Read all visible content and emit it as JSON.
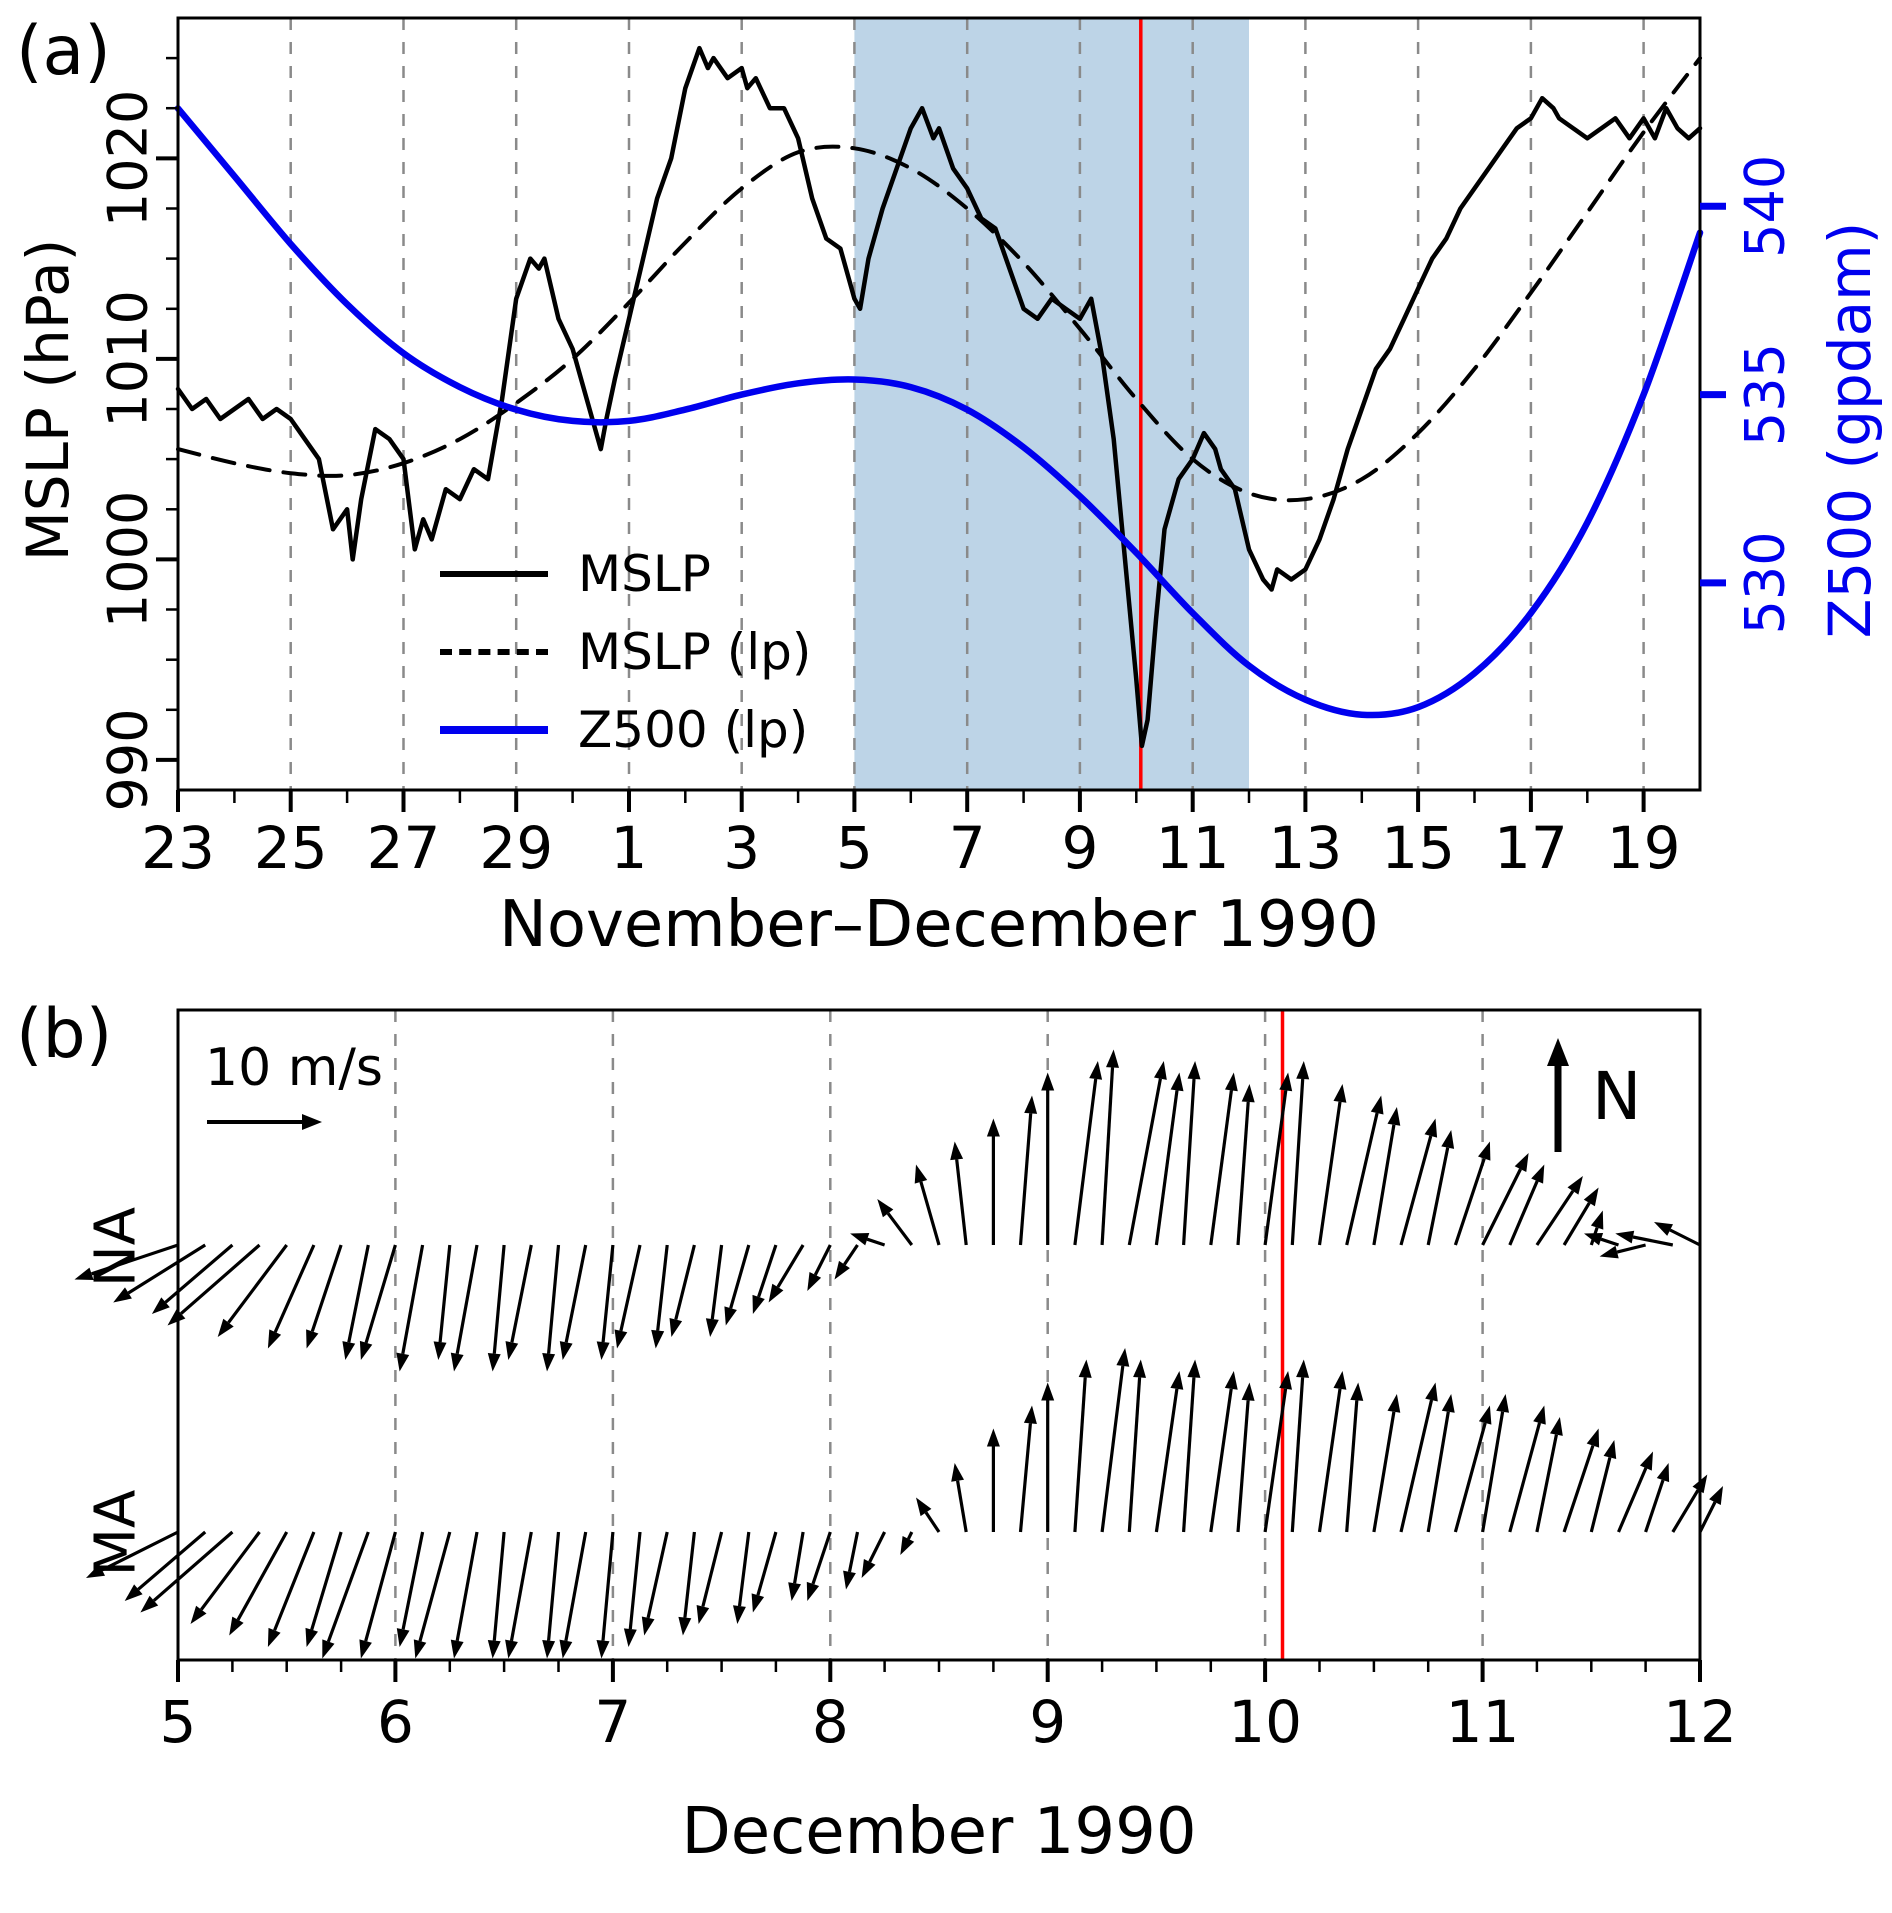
{
  "panels": {
    "a": {
      "tag": "(a)"
    },
    "b": {
      "tag": "(b)"
    }
  },
  "chart_data": [
    {
      "type": "line",
      "panel": "a",
      "xlabel": "November–December 1990",
      "ylabel_left": "MSLP (hPa)",
      "ylabel_right": "Z500 (gpdam)",
      "x_domain": [
        0,
        27
      ],
      "x_major_ticks": [
        0,
        2,
        4,
        6,
        8,
        10,
        12,
        14,
        16,
        18,
        20,
        22,
        24,
        26
      ],
      "x_major_labels": [
        "23",
        "25",
        "27",
        "29",
        "1",
        "3",
        "5",
        "7",
        "9",
        "11",
        "13",
        "15",
        "17",
        "19"
      ],
      "x_gridlines": [
        2,
        4,
        6,
        8,
        10,
        12,
        14,
        16,
        18,
        20,
        22,
        24,
        26
      ],
      "ylim_left": [
        988.5,
        1027.0
      ],
      "yticks_left": [
        990,
        1000,
        1010,
        1020
      ],
      "yticklabels_left": [
        "990",
        "1000",
        "1010",
        "1020"
      ],
      "ylim_right": [
        524.5,
        545.0
      ],
      "yticks_right": [
        530,
        535,
        540
      ],
      "yticklabels_right": [
        "530",
        "535",
        "540"
      ],
      "shaded_region": [
        12.0,
        19.0
      ],
      "shading_color": "#bdd4e7",
      "event_line_x": 17.08,
      "event_line_color": "#ff0000",
      "legend": [
        "MSLP",
        "MSLP (lp)",
        "Z500 (lp)"
      ],
      "series": [
        {
          "name": "MSLP",
          "style": "solid",
          "color": "#000000",
          "axis": "left",
          "smooth": false,
          "x": [
            0,
            0.25,
            0.5,
            0.75,
            1,
            1.25,
            1.5,
            1.75,
            2,
            2.25,
            2.5,
            2.75,
            3,
            3.1,
            3.25,
            3.5,
            3.75,
            4,
            4.2,
            4.35,
            4.5,
            4.75,
            5,
            5.25,
            5.5,
            5.75,
            6,
            6.25,
            6.4,
            6.5,
            6.75,
            7,
            7.25,
            7.5,
            7.6,
            7.75,
            8,
            8.25,
            8.5,
            8.75,
            9,
            9.25,
            9.4,
            9.5,
            9.75,
            10,
            10.1,
            10.25,
            10.5,
            10.75,
            11,
            11.25,
            11.5,
            11.75,
            12,
            12.1,
            12.25,
            12.5,
            12.75,
            13,
            13.2,
            13.4,
            13.5,
            13.75,
            14,
            14.25,
            14.5,
            14.75,
            15,
            15.25,
            15.5,
            15.75,
            16,
            16.2,
            16.4,
            16.6,
            16.8,
            17,
            17.1,
            17.2,
            17.35,
            17.5,
            17.75,
            18,
            18.2,
            18.4,
            18.5,
            18.75,
            19,
            19.25,
            19.4,
            19.5,
            19.75,
            20,
            20.25,
            20.5,
            20.75,
            21,
            21.25,
            21.5,
            21.75,
            22,
            22.25,
            22.5,
            22.75,
            23,
            23.25,
            23.5,
            23.75,
            24,
            24.2,
            24.4,
            24.5,
            24.75,
            25,
            25.25,
            25.5,
            25.75,
            26,
            26.2,
            26.4,
            26.6,
            26.8,
            27
          ],
          "y": [
            1008.5,
            1007.5,
            1008,
            1007,
            1007.5,
            1008,
            1007,
            1007.5,
            1007,
            1006,
            1005,
            1001.5,
            1002.5,
            1000,
            1003,
            1006.5,
            1006,
            1005,
            1000.5,
            1002,
            1001,
            1003.5,
            1003,
            1004.5,
            1004,
            1008,
            1013,
            1015,
            1014.5,
            1015,
            1012,
            1010.5,
            1008,
            1005.5,
            1007,
            1009,
            1012,
            1015,
            1018,
            1020,
            1023.5,
            1025.5,
            1024.5,
            1025,
            1024,
            1024.5,
            1023.5,
            1024,
            1022.5,
            1022.5,
            1021,
            1018,
            1016,
            1015.5,
            1013,
            1012.5,
            1015,
            1017.5,
            1019.5,
            1021.5,
            1022.5,
            1021,
            1021.5,
            1019.5,
            1018.5,
            1017,
            1016.5,
            1014.5,
            1012.5,
            1012,
            1013,
            1012.5,
            1012,
            1013,
            1010,
            1006,
            1000,
            994,
            990.7,
            992,
            997,
            1001.5,
            1004,
            1005,
            1006.3,
            1005.5,
            1004.5,
            1003.5,
            1000.5,
            999,
            998.5,
            999.5,
            999,
            999.5,
            1001,
            1003,
            1005.5,
            1007.5,
            1009.5,
            1010.5,
            1012,
            1013.5,
            1015,
            1016,
            1017.5,
            1018.5,
            1019.5,
            1020.5,
            1021.5,
            1022,
            1023,
            1022.5,
            1022,
            1021.5,
            1021,
            1021.5,
            1022,
            1021,
            1022,
            1021,
            1022.5,
            1021.5,
            1021,
            1021.5
          ]
        },
        {
          "name": "MSLP (lp)",
          "style": "dashed",
          "color": "#000000",
          "axis": "left",
          "smooth": true,
          "x": [
            0,
            1,
            2,
            3,
            4,
            5,
            6,
            7,
            8,
            9,
            10,
            11,
            12,
            13,
            14,
            15,
            16,
            17,
            18,
            19,
            20,
            21,
            22,
            23,
            24,
            25,
            26,
            27
          ],
          "y": [
            1005.5,
            1004.8,
            1004.3,
            1004.2,
            1004.8,
            1006,
            1007.8,
            1010,
            1012.8,
            1015.8,
            1018.5,
            1020.3,
            1020.5,
            1019.5,
            1017.5,
            1014.8,
            1011.5,
            1008,
            1005,
            1003.3,
            1003,
            1004,
            1006.3,
            1009.5,
            1013.3,
            1017.3,
            1021.3,
            1025
          ]
        },
        {
          "name": "Z500 (lp)",
          "style": "solid",
          "color": "#0000ee",
          "axis": "right",
          "smooth": true,
          "x": [
            0,
            1,
            2,
            3,
            4,
            5,
            6,
            7,
            8,
            9,
            10,
            11,
            12,
            13,
            14,
            15,
            16,
            17,
            18,
            19,
            20,
            21,
            22,
            23,
            24,
            25,
            26,
            27
          ],
          "y": [
            542.6,
            540.8,
            539.0,
            537.4,
            536.1,
            535.2,
            534.6,
            534.3,
            534.3,
            534.6,
            535.0,
            535.3,
            535.4,
            535.2,
            534.6,
            533.6,
            532.3,
            530.8,
            529.2,
            527.8,
            526.9,
            526.5,
            526.7,
            527.6,
            529.2,
            531.6,
            535.0,
            539.3
          ]
        }
      ]
    },
    {
      "type": "quiver",
      "panel": "b",
      "xlabel": "December 1990",
      "xlim": [
        5,
        12
      ],
      "x_major_ticks": [
        5,
        6,
        7,
        8,
        9,
        10,
        11,
        12
      ],
      "x_major_labels": [
        "5",
        "6",
        "7",
        "8",
        "9",
        "10",
        "11",
        "12"
      ],
      "x_gridlines": [
        6,
        7,
        8,
        9,
        10,
        11
      ],
      "event_line_x": 10.08,
      "event_line_color": "#ff0000",
      "ref_arrow": {
        "label": "10 m/s",
        "speed": 10
      },
      "north_label": "N",
      "t_start": 5,
      "t_step": 0.125,
      "units": "m/s",
      "rows": [
        {
          "name": "NA",
          "u": [
            -9,
            -8,
            -7,
            -8,
            -6,
            -4,
            -3,
            -2,
            -3,
            -2,
            -1,
            -2,
            -1,
            -2,
            -1,
            -2,
            -1,
            -2,
            -1,
            -2,
            -1,
            -2,
            -2,
            -3,
            -2,
            -2,
            -3,
            -3,
            -2,
            -1,
            0,
            1,
            0,
            2,
            1,
            3,
            2,
            1,
            2,
            1,
            2,
            1,
            2,
            3,
            2,
            3,
            2,
            3,
            4,
            3,
            4,
            3,
            1,
            -3,
            -4,
            -5,
            -4
          ],
          "v": [
            -3,
            -5,
            -6,
            -7,
            -8,
            -9,
            -9,
            -10,
            -10,
            -11,
            -10,
            -11,
            -11,
            -10,
            -11,
            -10,
            -10,
            -9,
            -9,
            -8,
            -8,
            -7,
            -6,
            -5,
            -4,
            -3,
            1,
            4,
            7,
            9,
            11,
            13,
            15,
            16,
            17,
            16,
            15,
            16,
            15,
            14,
            15,
            16,
            14,
            13,
            12,
            11,
            10,
            9,
            8,
            7,
            6,
            5,
            3,
            1,
            -1,
            1,
            2
          ]
        },
        {
          "name": "MA",
          "u": [
            -8,
            -7,
            -8,
            -6,
            -5,
            -4,
            -3,
            -4,
            -3,
            -2,
            -3,
            -2,
            -1,
            -2,
            -1,
            -2,
            -1,
            -1,
            -2,
            -1,
            -2,
            -1,
            -2,
            -1,
            -2,
            -1,
            -2,
            -1,
            -2,
            -1,
            0,
            1,
            0,
            1,
            2,
            1,
            2,
            1,
            2,
            1,
            2,
            1,
            2,
            1,
            2,
            3,
            2,
            3,
            2,
            3,
            2,
            3,
            2,
            3,
            2,
            3,
            2
          ],
          "v": [
            -4,
            -6,
            -7,
            -8,
            -9,
            -10,
            -10,
            -11,
            -11,
            -10,
            -11,
            -11,
            -11,
            -11,
            -11,
            -11,
            -11,
            -10,
            -9,
            -9,
            -8,
            -8,
            -7,
            -6,
            -6,
            -5,
            -4,
            -2,
            3,
            6,
            9,
            11,
            13,
            15,
            16,
            15,
            14,
            15,
            14,
            13,
            14,
            15,
            14,
            13,
            12,
            13,
            12,
            11,
            12,
            11,
            10,
            9,
            8,
            7,
            6,
            5,
            4
          ]
        }
      ]
    }
  ]
}
